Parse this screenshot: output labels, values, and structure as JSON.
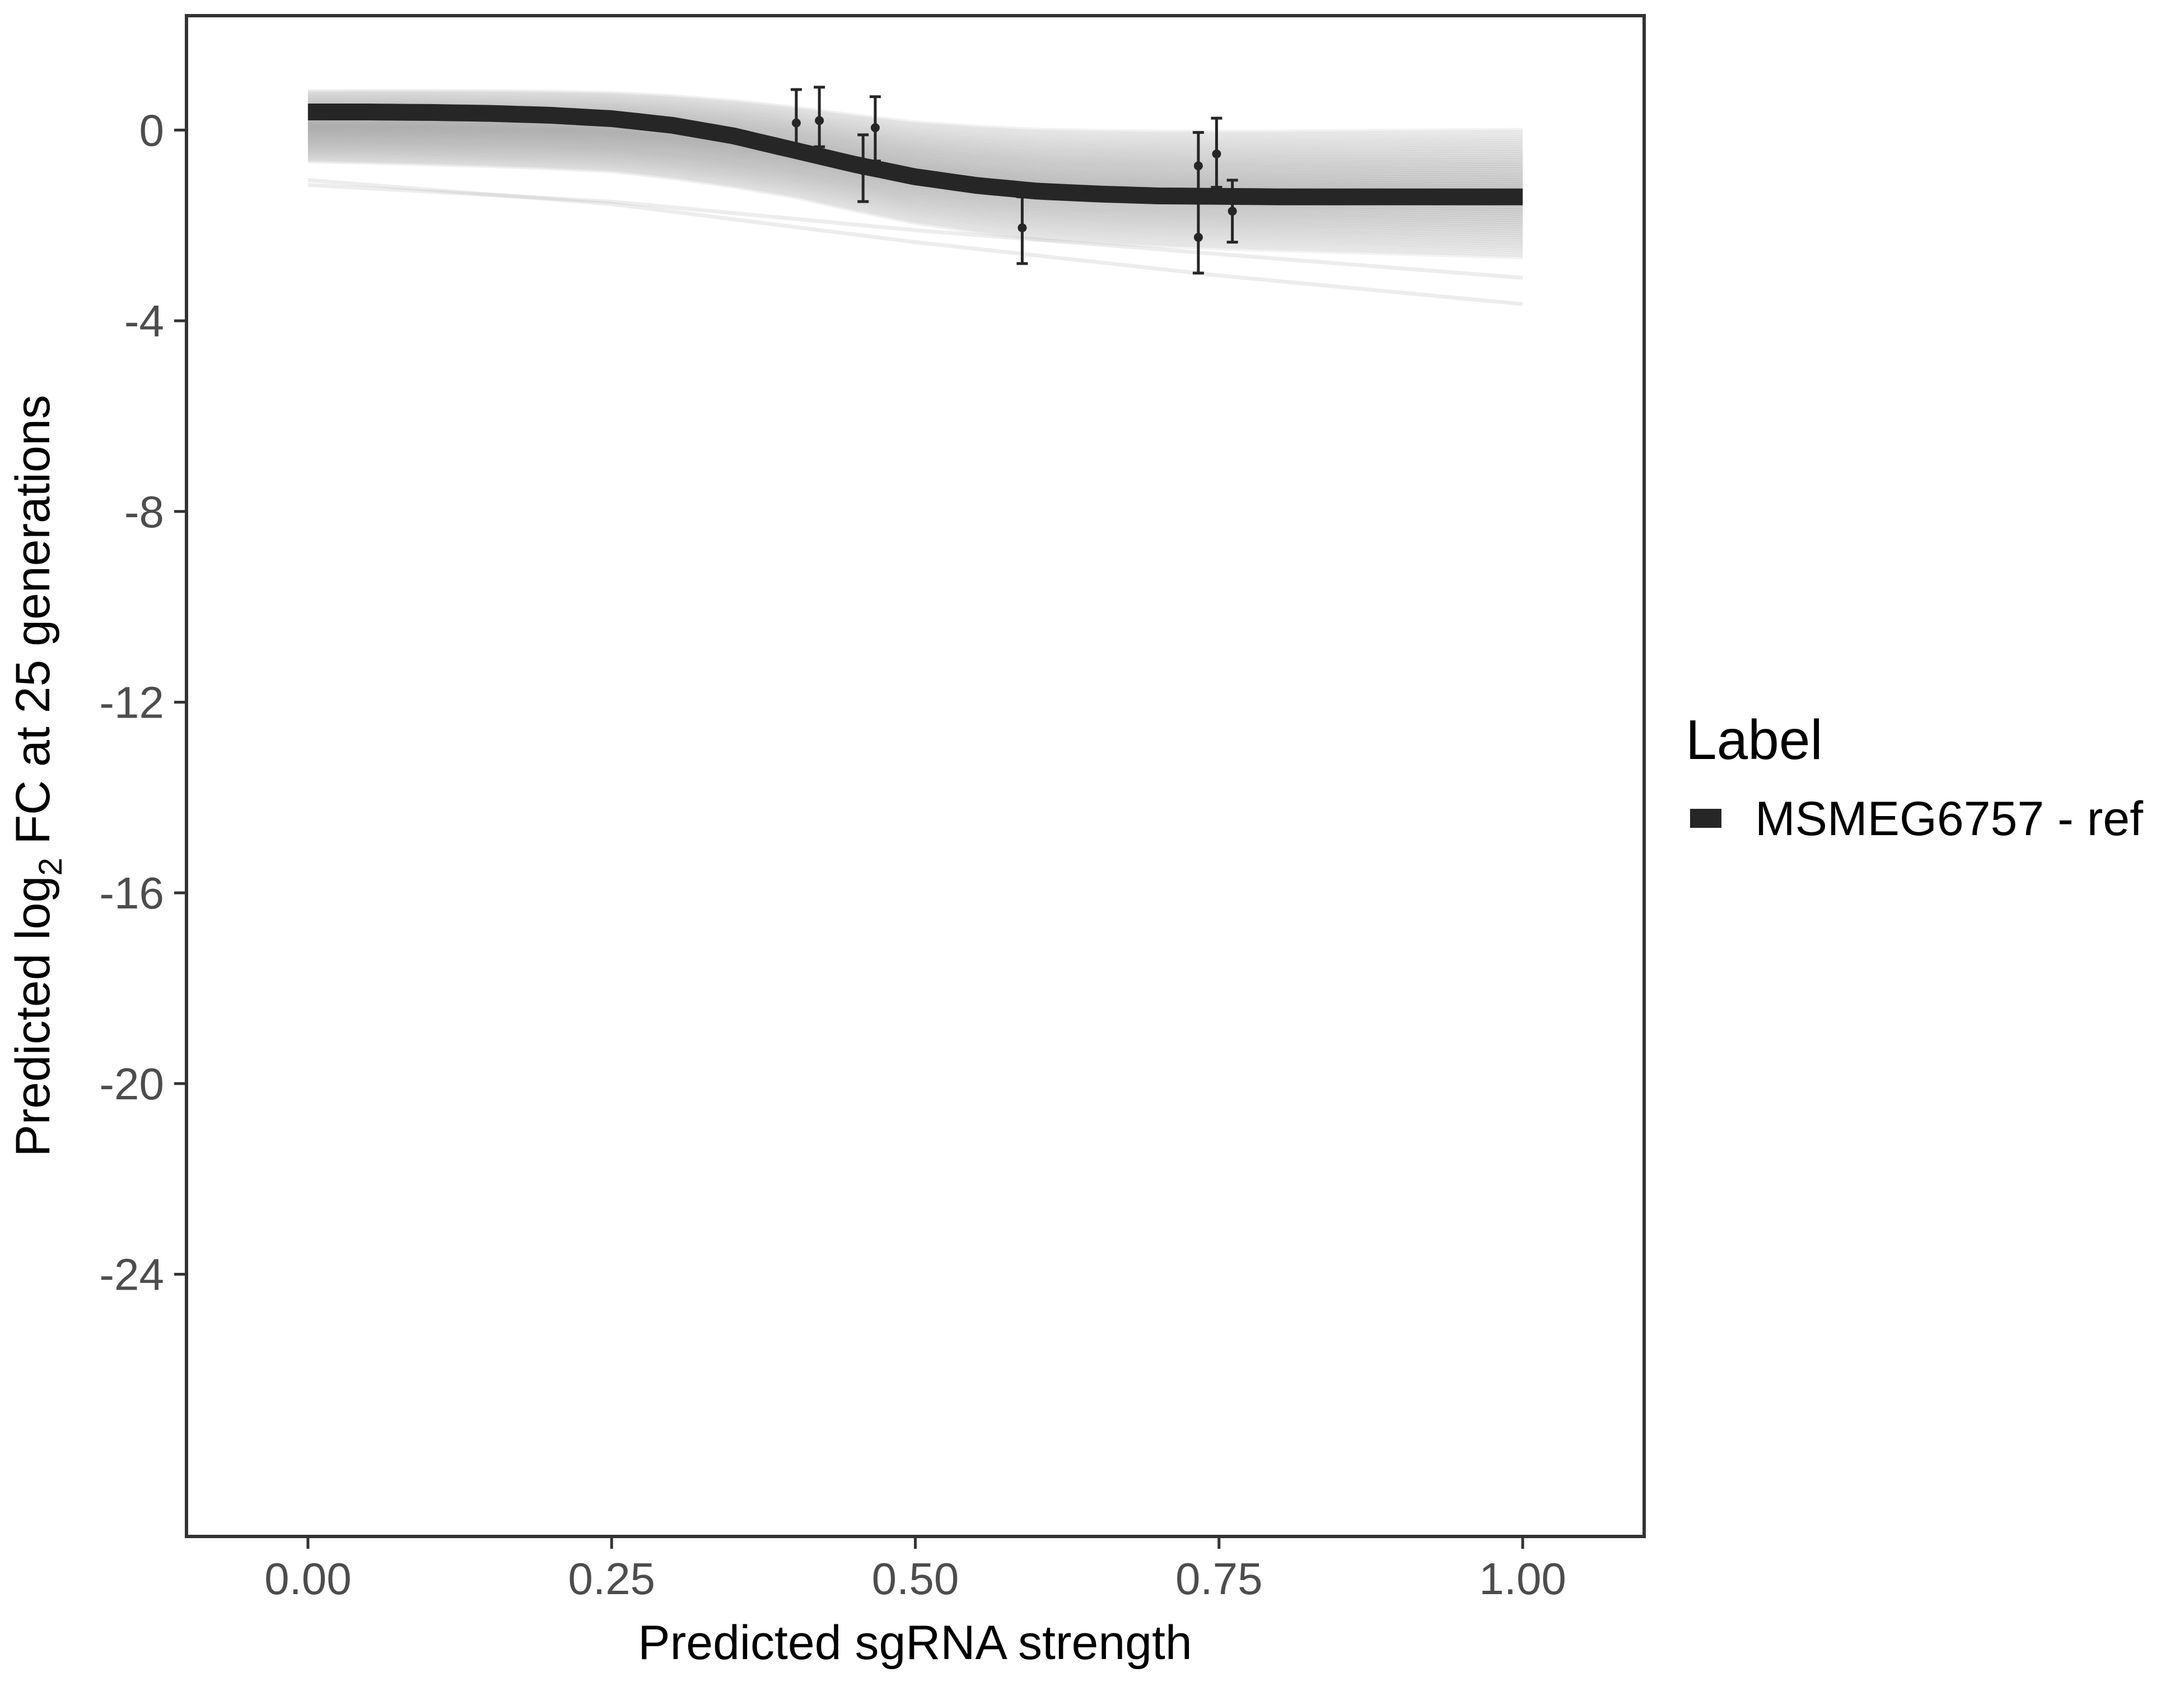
{
  "chart_data": {
    "type": "line",
    "xlabel": "Predicted sgRNA strength",
    "ylabel_parts": {
      "before": "Predicted  log",
      "subscript": "2",
      "after": " FC at 25 generations"
    },
    "xlim": [
      -0.1,
      1.1
    ],
    "ylim": [
      -29.5,
      2.4
    ],
    "x_ticks": [
      0,
      0.25,
      0.5,
      0.75,
      1
    ],
    "x_tick_labels": [
      "0.00",
      "0.25",
      "0.50",
      "0.75",
      "1.00"
    ],
    "y_ticks": [
      0,
      -4,
      -8,
      -12,
      -16,
      -20,
      -24
    ],
    "y_tick_labels": [
      "0",
      "-4",
      "-8",
      "-12",
      "-16",
      "-20",
      "-24"
    ],
    "grid": false,
    "legend": {
      "title": "Label",
      "position": "right",
      "entries": [
        {
          "name": "MSMEG6757 - ref",
          "color": "#262626"
        }
      ]
    },
    "series": [
      {
        "name": "MSMEG6757 - ref",
        "kind": "fitted-curve",
        "color": "#262626",
        "x": [
          0,
          0.05,
          0.1,
          0.15,
          0.2,
          0.25,
          0.3,
          0.35,
          0.4,
          0.45,
          0.5,
          0.55,
          0.6,
          0.65,
          0.7,
          0.75,
          0.8,
          0.85,
          0.9,
          0.95,
          1.0
        ],
        "y": [
          0.38,
          0.38,
          0.37,
          0.35,
          0.31,
          0.24,
          0.1,
          -0.12,
          -0.42,
          -0.72,
          -0.98,
          -1.16,
          -1.28,
          -1.34,
          -1.38,
          -1.39,
          -1.4,
          -1.4,
          -1.4,
          -1.4,
          -1.4
        ]
      }
    ],
    "uncertainty_band": {
      "kind": "posterior-draws",
      "color": "#9a9a9a",
      "lower": {
        "x": [
          0,
          0.25,
          0.4,
          0.5,
          0.6,
          0.75,
          1.0
        ],
        "y": [
          -0.95,
          -1.15,
          -1.5,
          -1.95,
          -2.25,
          -2.45,
          -2.7
        ]
      },
      "upper": {
        "x": [
          0,
          0.25,
          0.4,
          0.5,
          0.6,
          0.75,
          1.0
        ],
        "y": [
          0.62,
          0.6,
          0.5,
          0.3,
          0.2,
          0.15,
          0.15
        ]
      },
      "outliers": [
        {
          "x": [
            0,
            0.25,
            0.5,
            0.75,
            1.0
          ],
          "y": [
            -1.05,
            -1.55,
            -2.35,
            -3.05,
            -3.65
          ]
        },
        {
          "x": [
            0,
            0.25,
            0.5,
            0.75,
            1.0
          ],
          "y": [
            -1.15,
            -1.5,
            -2.1,
            -2.6,
            -3.1
          ]
        }
      ]
    },
    "points": [
      {
        "x": 0.402,
        "y": 0.15,
        "ymin": -0.45,
        "ymax": 0.85
      },
      {
        "x": 0.421,
        "y": 0.2,
        "ymin": -0.35,
        "ymax": 0.9
      },
      {
        "x": 0.457,
        "y": -0.85,
        "ymin": -1.5,
        "ymax": -0.1
      },
      {
        "x": 0.467,
        "y": 0.05,
        "ymin": -0.65,
        "ymax": 0.7
      },
      {
        "x": 0.588,
        "y": -2.05,
        "ymin": -2.8,
        "ymax": -1.4
      },
      {
        "x": 0.733,
        "y": -0.75,
        "ymin": -1.45,
        "ymax": -0.05
      },
      {
        "x": 0.733,
        "y": -2.25,
        "ymin": -3.0,
        "ymax": -1.5
      },
      {
        "x": 0.748,
        "y": -0.5,
        "ymin": -1.2,
        "ymax": 0.25
      },
      {
        "x": 0.761,
        "y": -1.7,
        "ymin": -2.35,
        "ymax": -1.05
      }
    ]
  }
}
